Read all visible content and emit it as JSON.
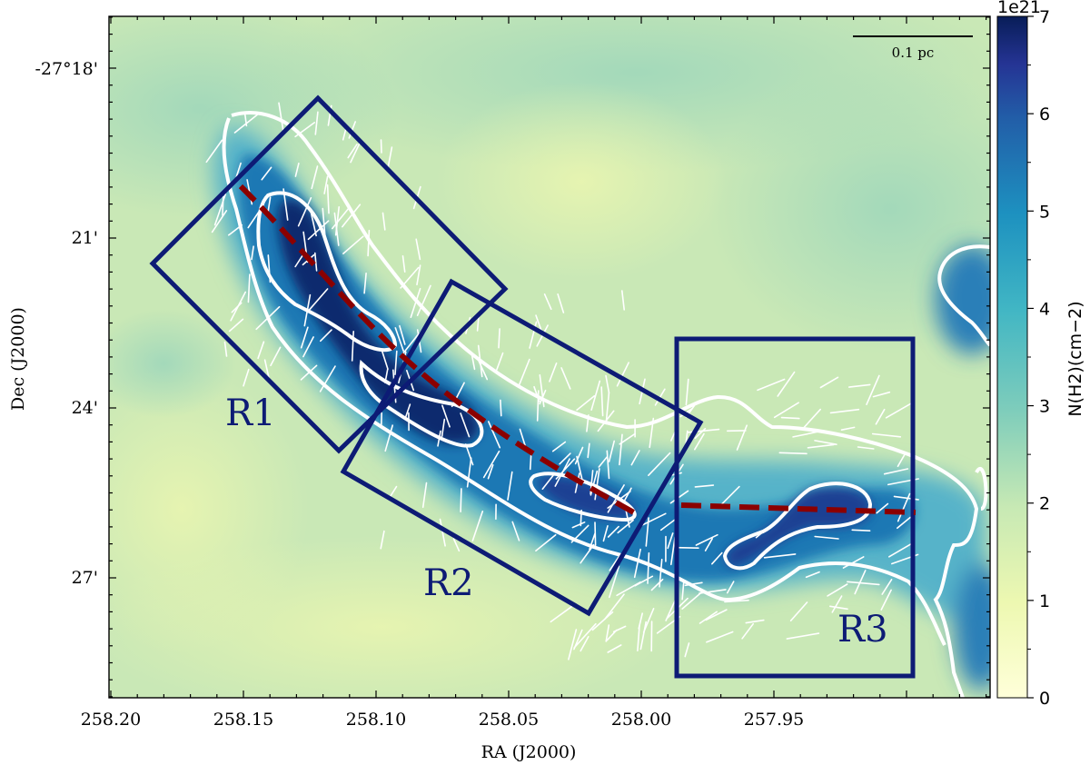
{
  "figure": {
    "x_axis_label": "RA (J2000)",
    "y_axis_label": "Dec (J2000)",
    "x_ticks": [
      "258.20",
      "258.15",
      "258.10",
      "258.05",
      "258.00",
      "257.95"
    ],
    "y_ticks": [
      "-27°18'",
      "21'",
      "24'",
      "27'"
    ],
    "scale_bar_label": "0.1 pc",
    "regions": [
      "R1",
      "R2",
      "R3"
    ],
    "colorbar": {
      "exponent": "1e21",
      "ticks": [
        "0",
        "1",
        "2",
        "3",
        "4",
        "5",
        "6",
        "7"
      ],
      "label": "N(H2)(cm−2)",
      "range": [
        0,
        7
      ],
      "colormap": "YlGnBu"
    },
    "colors": {
      "region_boxes": "#0d1b75",
      "spine": "#8b0000",
      "contours": "#ffffff",
      "vectors": "#ffffff"
    }
  }
}
